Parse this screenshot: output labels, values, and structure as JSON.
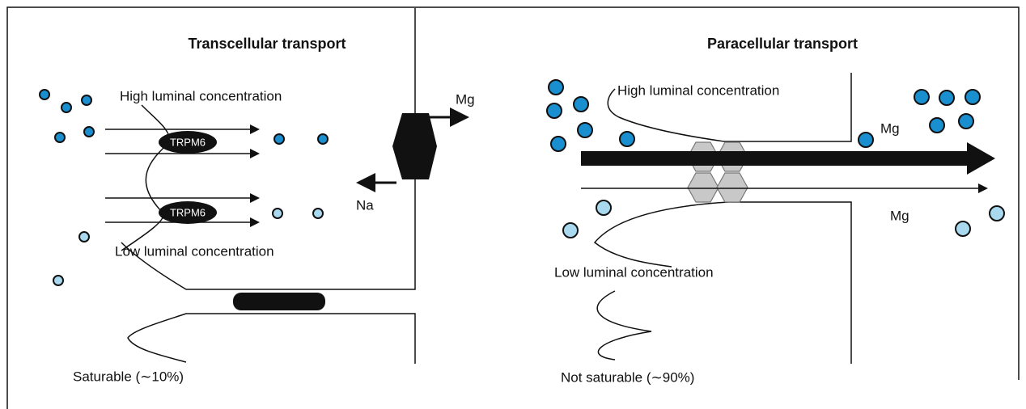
{
  "left": {
    "title": "Transcellular transport",
    "high_label": "High luminal concentration",
    "low_label": "Low luminal concentration",
    "channels": [
      "TRPM6",
      "TRPM6"
    ],
    "exchanger_out": "Mg",
    "exchanger_in": "Na",
    "footnote": "Saturable (∼10%)"
  },
  "right": {
    "title": "Paracellular transport",
    "high_label": "High luminal concentration",
    "low_label": "Low luminal concentration",
    "flux_labels": [
      "Mg",
      "Mg"
    ],
    "footnote": "Not saturable (∼90%)"
  }
}
